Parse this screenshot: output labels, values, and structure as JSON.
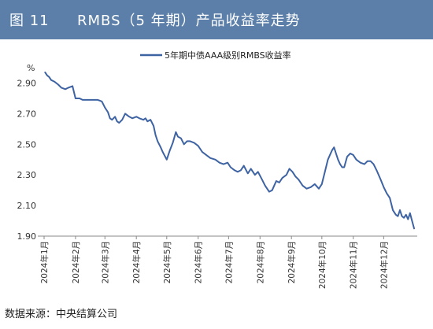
{
  "header": {
    "figure_number": "图 11",
    "title": "RMBS（5 年期）产品收益率走势"
  },
  "source": "数据来源：中央结算公司",
  "colors": {
    "header_bg": "#5b7fa8",
    "series": "#3e63a3",
    "axis": "#888888"
  },
  "chart_data": {
    "type": "line",
    "title": "",
    "xlabel": "",
    "ylabel": "%",
    "ylim": [
      1.9,
      2.98
    ],
    "yticks": [
      1.9,
      2.1,
      2.3,
      2.5,
      2.7,
      2.9
    ],
    "ytick_labels": [
      "1.90",
      "2.10",
      "2.30",
      "2.50",
      "2.70",
      "2.90"
    ],
    "xticks": [
      "2024年1月",
      "2024年2月",
      "2024年3月",
      "2024年4月",
      "2024年5月",
      "2024年6月",
      "2024年7月",
      "2024年8月",
      "2024年9月",
      "2024年10月",
      "2024年11月",
      "2024年12月"
    ],
    "legend": "top-center",
    "grid": false,
    "series": [
      {
        "name": "5年期中债AAA级别RMBS收益率",
        "x": [
          "2024-01-02",
          "2024-01-04",
          "2024-01-06",
          "2024-01-08",
          "2024-01-11",
          "2024-01-15",
          "2024-01-18",
          "2024-01-22",
          "2024-01-25",
          "2024-01-29",
          "2024-02-01",
          "2024-02-05",
          "2024-02-08",
          "2024-02-12",
          "2024-02-16",
          "2024-02-20",
          "2024-02-23",
          "2024-02-27",
          "2024-03-01",
          "2024-03-04",
          "2024-03-06",
          "2024-03-08",
          "2024-03-11",
          "2024-03-13",
          "2024-03-15",
          "2024-03-18",
          "2024-03-21",
          "2024-03-25",
          "2024-03-28",
          "2024-04-01",
          "2024-04-04",
          "2024-04-08",
          "2024-04-10",
          "2024-04-12",
          "2024-04-15",
          "2024-04-18",
          "2024-04-20",
          "2024-04-22",
          "2024-04-25",
          "2024-04-27",
          "2024-05-01",
          "2024-05-04",
          "2024-05-07",
          "2024-05-10",
          "2024-05-12",
          "2024-05-15",
          "2024-05-18",
          "2024-05-21",
          "2024-05-24",
          "2024-05-28",
          "2024-06-01",
          "2024-06-05",
          "2024-06-09",
          "2024-06-13",
          "2024-06-18",
          "2024-06-22",
          "2024-06-26",
          "2024-06-30",
          "2024-07-03",
          "2024-07-07",
          "2024-07-10",
          "2024-07-13",
          "2024-07-16",
          "2024-07-20",
          "2024-07-23",
          "2024-07-27",
          "2024-07-30",
          "2024-08-03",
          "2024-08-06",
          "2024-08-08",
          "2024-08-10",
          "2024-08-13",
          "2024-08-15",
          "2024-08-17",
          "2024-08-20",
          "2024-08-23",
          "2024-08-27",
          "2024-08-30",
          "2024-09-02",
          "2024-09-05",
          "2024-09-08",
          "2024-09-12",
          "2024-09-16",
          "2024-09-20",
          "2024-09-24",
          "2024-09-28",
          "2024-10-01",
          "2024-10-04",
          "2024-10-07",
          "2024-10-09",
          "2024-10-11",
          "2024-10-13",
          "2024-10-15",
          "2024-10-17",
          "2024-10-19",
          "2024-10-21",
          "2024-10-23",
          "2024-10-26",
          "2024-10-29",
          "2024-11-01",
          "2024-11-04",
          "2024-11-08",
          "2024-11-12",
          "2024-11-15",
          "2024-11-18",
          "2024-11-21",
          "2024-11-24",
          "2024-11-28",
          "2024-12-01",
          "2024-12-04",
          "2024-12-07",
          "2024-12-10",
          "2024-12-13",
          "2024-12-15",
          "2024-12-17",
          "2024-12-19",
          "2024-12-21",
          "2024-12-23",
          "2024-12-25",
          "2024-12-27",
          "2024-12-29",
          "2024-12-31"
        ],
        "values": [
          2.97,
          2.95,
          2.94,
          2.92,
          2.91,
          2.89,
          2.87,
          2.86,
          2.87,
          2.88,
          2.8,
          2.8,
          2.79,
          2.79,
          2.79,
          2.79,
          2.79,
          2.78,
          2.74,
          2.71,
          2.67,
          2.66,
          2.68,
          2.65,
          2.64,
          2.66,
          2.7,
          2.68,
          2.67,
          2.68,
          2.67,
          2.66,
          2.67,
          2.65,
          2.66,
          2.62,
          2.56,
          2.52,
          2.48,
          2.45,
          2.4,
          2.46,
          2.51,
          2.58,
          2.55,
          2.54,
          2.5,
          2.52,
          2.52,
          2.51,
          2.49,
          2.45,
          2.43,
          2.41,
          2.4,
          2.38,
          2.37,
          2.38,
          2.35,
          2.33,
          2.32,
          2.33,
          2.36,
          2.31,
          2.34,
          2.3,
          2.32,
          2.27,
          2.23,
          2.21,
          2.19,
          2.2,
          2.23,
          2.26,
          2.25,
          2.28,
          2.3,
          2.34,
          2.32,
          2.29,
          2.27,
          2.23,
          2.21,
          2.22,
          2.24,
          2.21,
          2.24,
          2.32,
          2.4,
          2.43,
          2.46,
          2.48,
          2.44,
          2.4,
          2.37,
          2.35,
          2.35,
          2.42,
          2.44,
          2.43,
          2.4,
          2.38,
          2.37,
          2.39,
          2.39,
          2.37,
          2.33,
          2.27,
          2.22,
          2.18,
          2.15,
          2.07,
          2.04,
          2.03,
          2.07,
          2.03,
          2.02,
          2.04,
          2.01,
          2.05,
          2.0,
          1.95
        ]
      }
    ]
  }
}
